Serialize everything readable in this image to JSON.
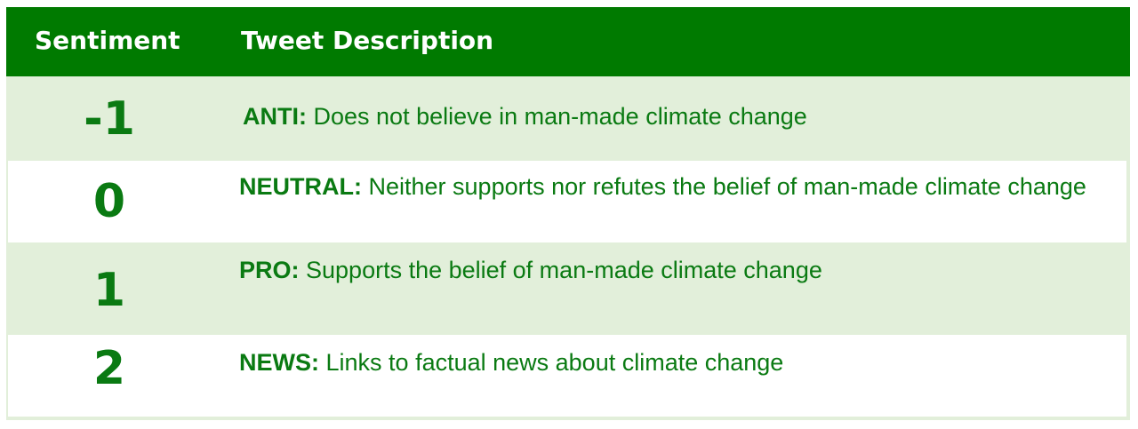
{
  "colors": {
    "header_bg": "#007a00",
    "header_text": "#ffffff",
    "row_shade": "#e2efda",
    "row_white": "#ffffff",
    "body_text": "#0a7a12"
  },
  "header": {
    "sentiment": "Sentiment",
    "description": "Tweet Description"
  },
  "rows": [
    {
      "score": "-1",
      "label": "ANTI:",
      "text": "Does not believe in man-made climate change"
    },
    {
      "score": "0",
      "label": "NEUTRAL:",
      "text": "Neither supports nor refutes the belief of man-made climate change"
    },
    {
      "score": "1",
      "label": "PRO:",
      "text": "Supports the belief of man-made climate change"
    },
    {
      "score": "2",
      "label": "NEWS:",
      "text": "Links to factual news about climate change"
    }
  ]
}
